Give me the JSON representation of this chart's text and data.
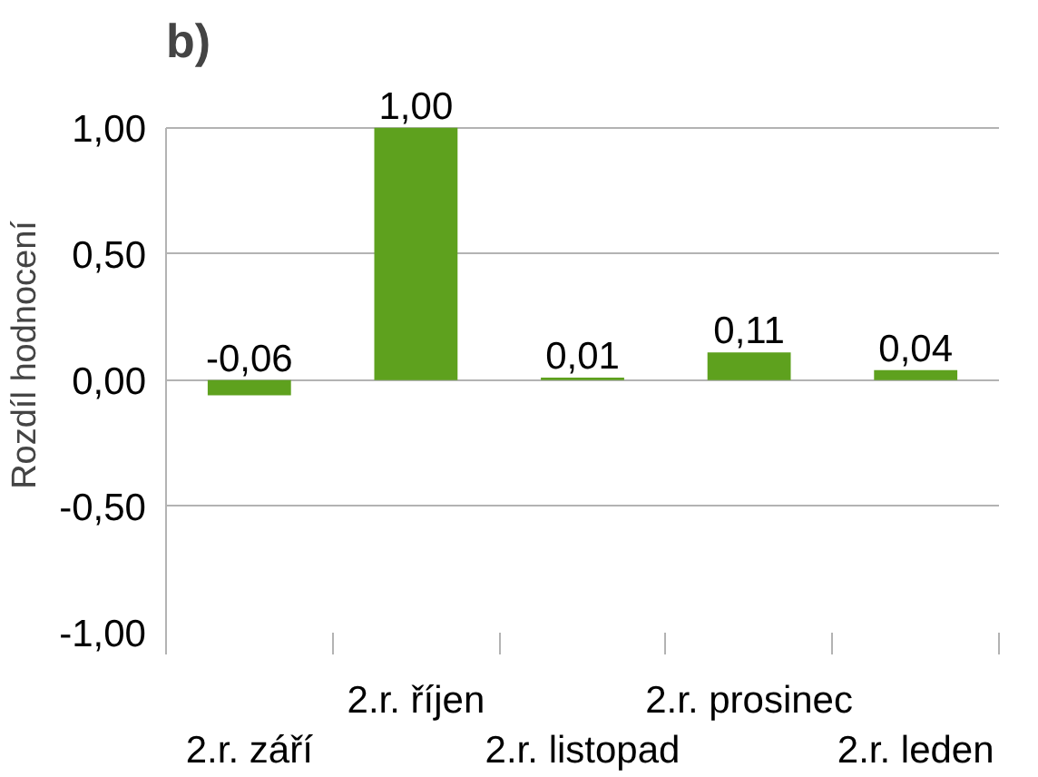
{
  "chart_data": {
    "type": "bar",
    "title": "b)",
    "categories": [
      "2.r. září",
      "2.r. říjen",
      "2.r. listopad",
      "2.r. prosinec",
      "2.r. leden"
    ],
    "values": [
      -0.06,
      1.0,
      0.01,
      0.11,
      0.04
    ],
    "value_labels": [
      "-0,06",
      "1,00",
      "0,01",
      "0,11",
      "0,04"
    ],
    "color": "#5ea11e",
    "ylabel": "Rozdíl hodnocení",
    "ylim": [
      -1.0,
      1.0
    ],
    "yticks": [
      {
        "value": -1.0,
        "label": "-1,00"
      },
      {
        "value": -0.5,
        "label": "-0,50"
      },
      {
        "value": 0.0,
        "label": "0,00"
      },
      {
        "value": 0.5,
        "label": "0,50"
      },
      {
        "value": 1.0,
        "label": "1,00"
      }
    ],
    "grid": "y"
  }
}
